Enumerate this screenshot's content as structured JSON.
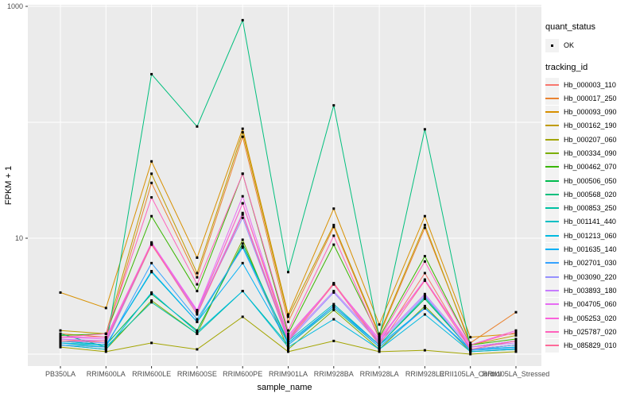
{
  "axes": {
    "y_title": "FPKM + 1",
    "x_title": "sample_name",
    "y_tick_labels": [
      "1000",
      "10"
    ]
  },
  "legend": {
    "quant_status_title": "quant_status",
    "quant_status_items": [
      {
        "label": "OK",
        "marker": "black-point"
      }
    ],
    "tracking_title": "tracking_id"
  },
  "colors": {
    "panel_bg": "#EBEBEB",
    "grid": "#FFFFFF",
    "axis_text": "#4D4D4D",
    "axis_title": "#000000",
    "point": "#000000",
    "legend_key_bg": "#F2F2F2",
    "tick_mark": "#333333"
  },
  "chart_data": {
    "type": "line",
    "title": "",
    "xlabel": "sample_name",
    "ylabel": "FPKM + 1",
    "y_scale": "log10",
    "ylim": [
      1,
      1000
    ],
    "y_major_gridlines": [
      10,
      1000
    ],
    "y_minor_gridlines": [
      1,
      100
    ],
    "y_tick_values": [
      1000,
      10
    ],
    "grid": true,
    "legend_position": "right",
    "marker": "black-square-point",
    "categories": [
      "PB350LA",
      "RRIM600LA",
      "RRIM600LE",
      "RRIM600SE",
      "RRIM600PE",
      "RRIM901LA",
      "RRIM928BA",
      "RRIM928LA",
      "RRIM928LE",
      "RRII105LA_Control",
      "RRII105LA_Stressed"
    ],
    "series": [
      {
        "name": "Hb_000003_110",
        "color": "#F8766D",
        "values": [
          1.35,
          1.25,
          8.8,
          2.3,
          20,
          1.35,
          4.1,
          1.25,
          5.0,
          1.1,
          1.2
        ]
      },
      {
        "name": "Hb_000017_250",
        "color": "#EA8331",
        "values": [
          1.5,
          1.4,
          30,
          4.6,
          75,
          1.9,
          12.5,
          1.45,
          12.3,
          1.25,
          2.3
        ]
      },
      {
        "name": "Hb_000093_090",
        "color": "#D89000",
        "values": [
          3.4,
          2.5,
          46,
          6.8,
          88,
          2.2,
          18,
          1.8,
          15.5,
          1.4,
          1.5
        ]
      },
      {
        "name": "Hb_000162_190",
        "color": "#C09B00",
        "values": [
          1.6,
          1.5,
          36,
          5.0,
          82,
          2.1,
          13,
          1.5,
          13,
          1.2,
          1.45
        ]
      },
      {
        "name": "Hb_000207_060",
        "color": "#A3A500",
        "values": [
          1.15,
          1.05,
          1.25,
          1.1,
          2.1,
          1.05,
          1.3,
          1.05,
          1.08,
          1.0,
          1.05
        ]
      },
      {
        "name": "Hb_000334_090",
        "color": "#7CAE00",
        "values": [
          1.2,
          1.1,
          2.9,
          1.5,
          9.7,
          1.1,
          2.4,
          1.1,
          2.6,
          1.05,
          1.1
        ]
      },
      {
        "name": "Hb_000462_070",
        "color": "#39B600",
        "values": [
          1.45,
          1.5,
          15.5,
          3.5,
          36,
          1.5,
          8.8,
          1.4,
          7.0,
          1.2,
          1.35
        ]
      },
      {
        "name": "Hb_000506_050",
        "color": "#00BB4E",
        "values": [
          1.3,
          1.2,
          3.3,
          1.6,
          9.0,
          1.25,
          2.6,
          1.2,
          3.0,
          1.1,
          1.2
        ]
      },
      {
        "name": "Hb_000568_020",
        "color": "#00BF7D",
        "values": [
          1.5,
          1.15,
          260,
          92,
          760,
          5.1,
          140,
          1.4,
          87,
          1.15,
          1.3
        ]
      },
      {
        "name": "Hb_000853_250",
        "color": "#00C1A3",
        "values": [
          1.25,
          1.15,
          2.8,
          1.5,
          3.5,
          1.2,
          2.5,
          1.15,
          2.5,
          1.1,
          1.15
        ]
      },
      {
        "name": "Hb_001141_440",
        "color": "#00BFC4",
        "values": [
          1.3,
          1.2,
          5.1,
          1.9,
          8.5,
          1.3,
          2.7,
          1.2,
          3.1,
          1.1,
          1.2
        ]
      },
      {
        "name": "Hb_001213_060",
        "color": "#00BAE0",
        "values": [
          1.2,
          1.1,
          3.4,
          1.55,
          3.5,
          1.15,
          2.0,
          1.1,
          2.2,
          1.05,
          1.1
        ]
      },
      {
        "name": "Hb_001635_140",
        "color": "#00B0F6",
        "values": [
          1.25,
          1.2,
          5.2,
          1.9,
          6.1,
          1.25,
          2.6,
          1.2,
          2.5,
          1.1,
          1.15
        ]
      },
      {
        "name": "Hb_002701_030",
        "color": "#35A2FF",
        "values": [
          1.2,
          1.15,
          6.1,
          2.0,
          8.3,
          1.2,
          2.6,
          1.15,
          2.48,
          1.08,
          1.12
        ]
      },
      {
        "name": "Hb_003090_220",
        "color": "#9590FF",
        "values": [
          1.3,
          1.25,
          8.9,
          2.3,
          15,
          1.3,
          3.4,
          1.25,
          3.2,
          1.1,
          1.2
        ]
      },
      {
        "name": "Hb_003893_180",
        "color": "#C77CFF",
        "values": [
          1.35,
          1.3,
          9.0,
          2.3,
          16.5,
          1.35,
          3.5,
          1.3,
          3.3,
          1.15,
          1.25
        ]
      },
      {
        "name": "Hb_004705_060",
        "color": "#E76BF3",
        "values": [
          1.4,
          1.35,
          9.2,
          2.4,
          23,
          1.4,
          4.0,
          1.3,
          4.4,
          1.15,
          1.3
        ]
      },
      {
        "name": "Hb_005253_020",
        "color": "#FA62DB",
        "values": [
          1.4,
          1.4,
          9.1,
          2.35,
          20,
          1.45,
          4.0,
          1.35,
          4.3,
          1.2,
          1.6
        ]
      },
      {
        "name": "Hb_025787_020",
        "color": "#FF62BC",
        "values": [
          1.4,
          1.5,
          22.5,
          4.0,
          36,
          1.6,
          10.5,
          1.35,
          6.3,
          1.2,
          1.55
        ]
      },
      {
        "name": "Hb_085829_010",
        "color": "#FF6A98",
        "values": [
          1.3,
          1.3,
          8.9,
          2.2,
          16,
          1.3,
          4.0,
          1.2,
          4.3,
          1.1,
          1.3
        ]
      }
    ]
  }
}
